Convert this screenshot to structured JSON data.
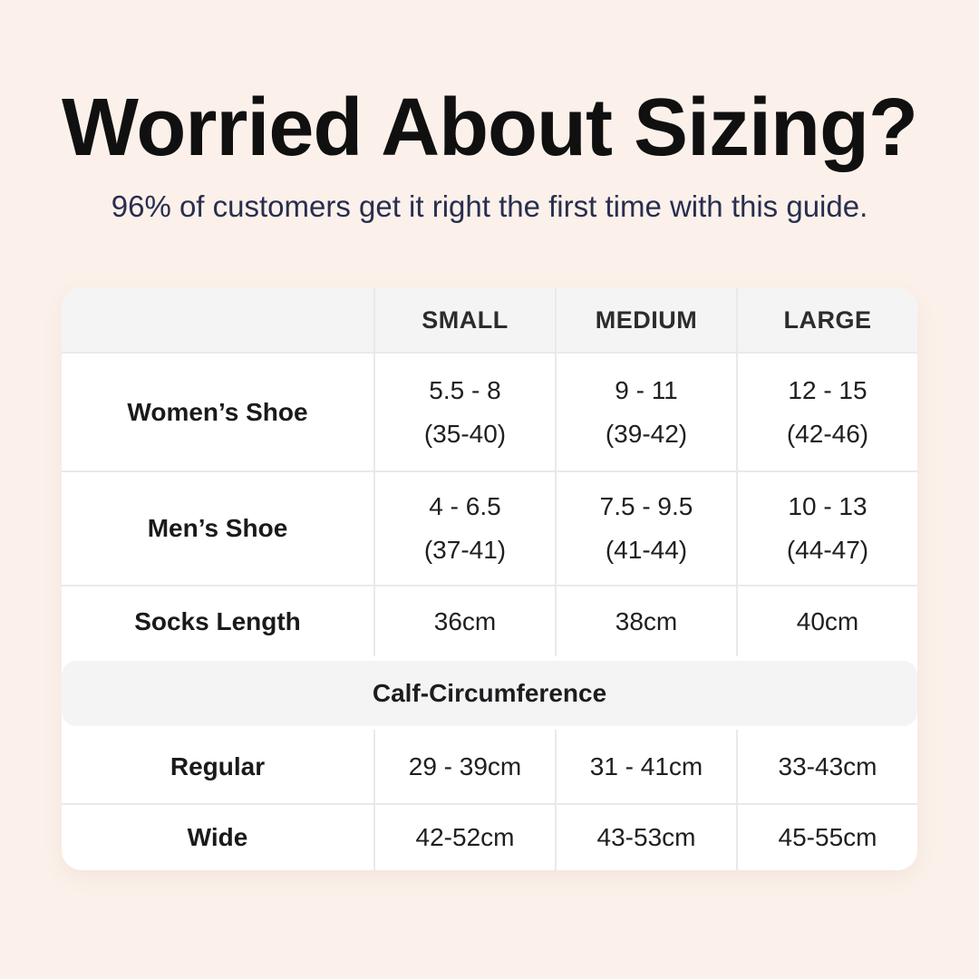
{
  "colors": {
    "page_background": "#fbf1ea",
    "card_background": "#ffffff",
    "header_band_background": "#f4f4f5",
    "divider": "#e9e9ea",
    "title_text": "#101010",
    "subtitle_text": "#292e50",
    "table_text": "#1f1f22"
  },
  "header": {
    "title": "Worried About Sizing?",
    "subtitle": "96% of customers get it right the first time with this guide."
  },
  "sizing": {
    "columns": [
      "SMALL",
      "MEDIUM",
      "LARGE"
    ],
    "rows": [
      {
        "label": "Women’s Shoe",
        "cells": [
          {
            "l1": "5.5 - 8",
            "l2": "(35-40)"
          },
          {
            "l1": "9 - 11",
            "l2": "(39-42)"
          },
          {
            "l1": "12 - 15",
            "l2": "(42-46)"
          }
        ]
      },
      {
        "label": "Men’s Shoe",
        "cells": [
          {
            "l1": "4 - 6.5",
            "l2": "(37-41)"
          },
          {
            "l1": "7.5 - 9.5",
            "l2": "(41-44)"
          },
          {
            "l1": "10 - 13",
            "l2": "(44-47)"
          }
        ]
      },
      {
        "label": "Socks Length",
        "cells": [
          {
            "l1": "36cm"
          },
          {
            "l1": "38cm"
          },
          {
            "l1": "40cm"
          }
        ]
      }
    ],
    "section_title": "Calf-Circumference",
    "calf": [
      {
        "label": "Regular",
        "cells": [
          "29 - 39cm",
          "31 - 41cm",
          "33-43cm"
        ]
      },
      {
        "label": "Wide",
        "cells": [
          "42-52cm",
          "43-53cm",
          "45-55cm"
        ]
      }
    ]
  }
}
